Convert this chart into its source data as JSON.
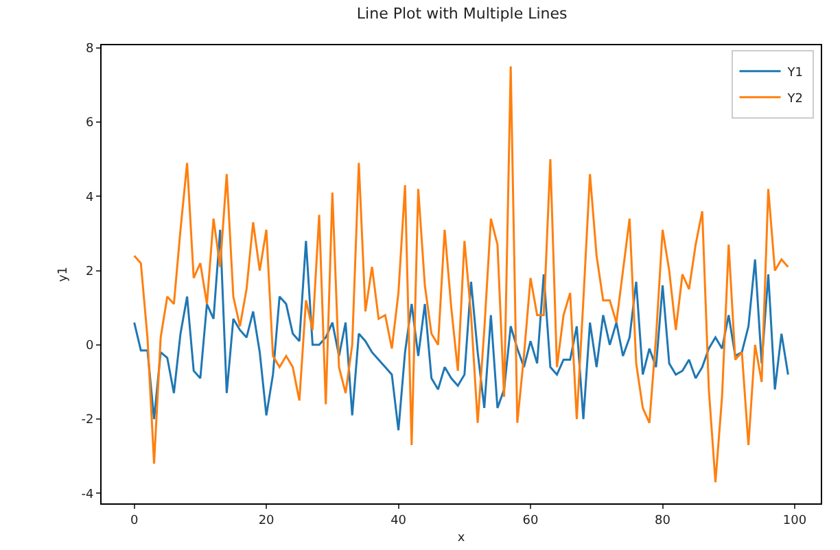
{
  "chart_data": {
    "type": "line",
    "title": "Line Plot with Multiple Lines",
    "xlabel": "x",
    "ylabel": "y1",
    "x": [
      0,
      1,
      2,
      3,
      4,
      5,
      6,
      7,
      8,
      9,
      10,
      11,
      12,
      13,
      14,
      15,
      16,
      17,
      18,
      19,
      20,
      21,
      22,
      23,
      24,
      25,
      26,
      27,
      28,
      29,
      30,
      31,
      32,
      33,
      34,
      35,
      36,
      37,
      38,
      39,
      40,
      41,
      42,
      43,
      44,
      45,
      46,
      47,
      48,
      49,
      50,
      51,
      52,
      53,
      54,
      55,
      56,
      57,
      58,
      59,
      60,
      61,
      62,
      63,
      64,
      65,
      66,
      67,
      68,
      69,
      70,
      71,
      72,
      73,
      74,
      75,
      76,
      77,
      78,
      79,
      80,
      81,
      82,
      83,
      84,
      85,
      86,
      87,
      88,
      89,
      90,
      91,
      92,
      93,
      94,
      95,
      96,
      97,
      98,
      99
    ],
    "series": [
      {
        "name": "Y1",
        "color": "#1f77b4",
        "values": [
          0.6,
          -0.15,
          -0.15,
          -2.0,
          -0.2,
          -0.35,
          -1.3,
          0.3,
          1.3,
          -0.7,
          -0.9,
          1.1,
          0.7,
          3.1,
          -1.3,
          0.7,
          0.4,
          0.2,
          0.9,
          -0.2,
          -1.9,
          -0.8,
          1.3,
          1.1,
          0.3,
          0.1,
          2.8,
          0.0,
          0.0,
          0.2,
          0.6,
          -0.3,
          0.6,
          -1.9,
          0.3,
          0.1,
          -0.2,
          -0.4,
          -0.6,
          -0.8,
          -2.3,
          -0.2,
          1.1,
          -0.3,
          1.1,
          -0.9,
          -1.2,
          -0.6,
          -0.9,
          -1.1,
          -0.8,
          1.7,
          -0.2,
          -1.7,
          0.8,
          -1.7,
          -1.2,
          0.5,
          -0.1,
          -0.6,
          0.1,
          -0.5,
          1.9,
          -0.6,
          -0.8,
          -0.4,
          -0.4,
          0.5,
          -2.0,
          0.6,
          -0.6,
          0.8,
          0.0,
          0.6,
          -0.3,
          0.2,
          1.7,
          -0.8,
          -0.1,
          -0.6,
          1.6,
          -0.5,
          -0.8,
          -0.7,
          -0.4,
          -0.9,
          -0.6,
          -0.1,
          0.2,
          -0.1,
          0.8,
          -0.3,
          -0.2,
          0.5,
          2.3,
          -0.5,
          1.9,
          -1.2,
          0.3,
          -0.8
        ]
      },
      {
        "name": "Y2",
        "color": "#ff7f0e",
        "values": [
          2.4,
          2.2,
          0.2,
          -3.2,
          0.2,
          1.3,
          1.1,
          3.1,
          4.9,
          1.8,
          2.2,
          1.1,
          3.4,
          2.1,
          4.6,
          1.3,
          0.5,
          1.5,
          3.3,
          2.0,
          3.1,
          -0.3,
          -0.6,
          -0.3,
          -0.6,
          -1.5,
          1.2,
          0.4,
          3.5,
          -1.6,
          4.1,
          -0.6,
          -1.3,
          0.0,
          4.9,
          0.9,
          2.1,
          0.7,
          0.8,
          -0.1,
          1.4,
          4.3,
          -2.7,
          4.2,
          1.6,
          0.3,
          0.0,
          3.1,
          1.0,
          -0.7,
          2.8,
          0.8,
          -2.1,
          0.4,
          3.4,
          2.7,
          -1.4,
          7.5,
          -2.1,
          -0.3,
          1.8,
          0.8,
          0.8,
          5.0,
          -0.6,
          0.8,
          1.4,
          -2.0,
          1.2,
          4.6,
          2.4,
          1.2,
          1.2,
          0.6,
          2.0,
          3.4,
          -0.5,
          -1.7,
          -2.1,
          0.2,
          3.1,
          2.0,
          0.4,
          1.9,
          1.5,
          2.7,
          3.6,
          -1.2,
          -3.7,
          -1.4,
          2.7,
          -0.4,
          -0.2,
          -2.7,
          0.0,
          -1.0,
          4.2,
          2.0,
          2.3,
          2.1
        ]
      }
    ],
    "xlim": [
      -4.95,
      103.95
    ],
    "xticks": [
      0,
      20,
      40,
      60,
      80,
      100
    ],
    "ylim": [
      -4.27,
      8.07
    ],
    "yticks": [
      -4,
      -2,
      0,
      2,
      4,
      6,
      8
    ],
    "grid": false,
    "legend": "top right",
    "marker": "none",
    "line_style": "solid"
  }
}
